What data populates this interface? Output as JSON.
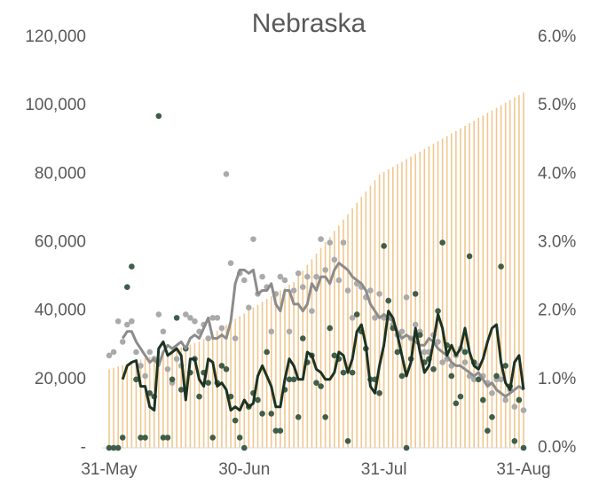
{
  "chart_data": {
    "type": "combo",
    "title": "Nebraska",
    "categories": [
      "31-May",
      null,
      null,
      null,
      null,
      null,
      null,
      null,
      null,
      null,
      null,
      null,
      null,
      null,
      null,
      null,
      null,
      null,
      null,
      null,
      null,
      null,
      null,
      null,
      null,
      null,
      null,
      null,
      null,
      null,
      "30-Jun",
      null,
      null,
      null,
      null,
      null,
      null,
      null,
      null,
      null,
      null,
      null,
      null,
      null,
      null,
      null,
      null,
      null,
      null,
      null,
      null,
      null,
      null,
      null,
      null,
      null,
      null,
      null,
      null,
      null,
      null,
      "31-Jul",
      null,
      null,
      null,
      null,
      null,
      null,
      null,
      null,
      null,
      null,
      null,
      null,
      null,
      null,
      null,
      null,
      null,
      null,
      null,
      null,
      null,
      null,
      null,
      null,
      null,
      null,
      null,
      null,
      null,
      null,
      "31-Aug"
    ],
    "ylim": [
      0,
      120000
    ],
    "yticks": [
      {
        "value": 0,
        "label": "-"
      },
      {
        "value": 20000,
        "label": "20,000"
      },
      {
        "value": 40000,
        "label": "40,000"
      },
      {
        "value": 60000,
        "label": "60,000"
      },
      {
        "value": 80000,
        "label": "80,000"
      },
      {
        "value": 100000,
        "label": "100,000"
      },
      {
        "value": 120000,
        "label": "120,000"
      }
    ],
    "y2lim": [
      0,
      6
    ],
    "y2ticks": [
      {
        "value": 0,
        "label": "0.0%"
      },
      {
        "value": 1,
        "label": "1.0%"
      },
      {
        "value": 2,
        "label": "2.0%"
      },
      {
        "value": 3,
        "label": "3.0%"
      },
      {
        "value": 4,
        "label": "4.0%"
      },
      {
        "value": 5,
        "label": "5.0%"
      },
      {
        "value": 6,
        "label": "6.0%"
      }
    ],
    "series": [
      {
        "type": "bar",
        "color": "#f0c890",
        "values": [
          23000,
          23400,
          23800,
          24200,
          24600,
          25000,
          25400,
          25800,
          26200,
          26600,
          27000,
          27400,
          27800,
          28200,
          28600,
          29000,
          29400,
          29800,
          30200,
          30600,
          31000,
          31800,
          32700,
          33500,
          34300,
          35200,
          36000,
          36800,
          37700,
          38500,
          39300,
          40200,
          41000,
          41800,
          42700,
          43500,
          44300,
          45200,
          46000,
          46800,
          47700,
          48500,
          50200,
          51800,
          53500,
          55100,
          56800,
          58400,
          60100,
          61700,
          63400,
          65000,
          66700,
          68300,
          70000,
          71600,
          73300,
          74900,
          76600,
          78200,
          79900,
          80600,
          81400,
          82100,
          82900,
          83600,
          84400,
          85100,
          85900,
          86600,
          87400,
          88100,
          88900,
          89600,
          90400,
          91100,
          91900,
          92600,
          93400,
          94100,
          94900,
          95600,
          96400,
          97100,
          97900,
          98600,
          99400,
          100100,
          100900,
          101600,
          102400,
          103100,
          103900
        ]
      },
      {
        "type": "scatter",
        "axis": "y2",
        "color": "#aaaaaa",
        "values": [
          1.35,
          1.4,
          1.85,
          1.55,
          1.8,
          1.85,
          1.4,
          1.2,
          1.05,
          1.4,
          1.3,
          1.95,
          1.7,
          1.15,
          0.95,
          1.3,
          1.2,
          1.95,
          1.9,
          1.85,
          1.7,
          1.8,
          1.6,
          1.9,
          1.9,
          1.75,
          4.0,
          2.7,
          1.6,
          2.55,
          2.45,
          2.05,
          3.05,
          2.25,
          2.5,
          2.35,
          1.7,
          2.25,
          2.5,
          2.45,
          1.7,
          2.3,
          2.55,
          2.35,
          2.5,
          2.0,
          2.5,
          3.05,
          2.6,
          3.0,
          2.75,
          2.45,
          3.0,
          2.3,
          1.9,
          2.4,
          2.35,
          2.2,
          2.3,
          1.9,
          2.25,
          1.9,
          1.9,
          1.8,
          1.65,
          1.7,
          2.2,
          1.6,
          1.8,
          1.7,
          1.4,
          1.4,
          1.65,
          1.55,
          1.25,
          1.3,
          1.2,
          1.35,
          1.45,
          1.25,
          1.05,
          1.0,
          1.2,
          1.05,
          0.95,
          0.8,
          1.0,
          1.0,
          0.7,
          0.85,
          0.6,
          0.7,
          0.55
        ]
      },
      {
        "type": "scatter",
        "color": "#3f5e4a",
        "values": [
          0,
          0,
          0,
          3000,
          47000,
          53000,
          20000,
          3000,
          3000,
          16000,
          15000,
          97000,
          3000,
          3000,
          20000,
          38000,
          17000,
          29000,
          22000,
          26000,
          15000,
          22000,
          19000,
          3000,
          19000,
          24000,
          23000,
          15000,
          8000,
          3000,
          0,
          12000,
          16000,
          14000,
          10000,
          28000,
          10000,
          5000,
          5000,
          17000,
          20000,
          20000,
          9000,
          32000,
          25000,
          27000,
          19000,
          18000,
          9000,
          35000,
          27000,
          26000,
          22000,
          2000,
          22000,
          39000,
          34000,
          29000,
          20000,
          20000,
          16000,
          59000,
          43000,
          35000,
          28000,
          21000,
          0,
          26000,
          45000,
          33000,
          25000,
          26000,
          23000,
          40000,
          60000,
          30000,
          21000,
          13000,
          15000,
          28000,
          56000,
          25000,
          20000,
          14000,
          5000,
          9000,
          21000,
          53000,
          24000,
          18000,
          2000,
          14000,
          0
        ]
      },
      {
        "type": "line",
        "axis": "y2",
        "color": "#8c8c8c",
        "values": [
          null,
          null,
          null,
          1.6,
          1.7,
          1.7,
          1.55,
          1.45,
          1.35,
          1.25,
          1.3,
          1.2,
          1.4,
          1.5,
          1.45,
          1.5,
          1.55,
          1.45,
          1.6,
          1.65,
          1.6,
          1.75,
          1.9,
          1.6,
          1.6,
          1.65,
          1.6,
          1.85,
          2.4,
          2.6,
          2.6,
          2.55,
          2.6,
          2.25,
          2.3,
          2.3,
          2.4,
          2.1,
          2.0,
          2.3,
          2.3,
          2.1,
          2.1,
          2.0,
          2.1,
          2.4,
          2.3,
          2.5,
          2.5,
          2.4,
          2.6,
          2.7,
          2.65,
          2.6,
          2.5,
          2.45,
          2.4,
          2.3,
          2.1,
          2.0,
          1.9,
          1.95,
          1.9,
          1.85,
          1.7,
          1.6,
          1.65,
          1.6,
          1.55,
          1.5,
          1.5,
          1.6,
          1.55,
          1.45,
          1.4,
          1.35,
          1.25,
          1.2,
          1.2,
          1.15,
          1.1,
          1.05,
          1.1,
          1.0,
          0.9,
          0.95,
          0.85,
          0.8,
          0.75,
          0.8,
          0.85,
          0.9,
          0.85
        ]
      },
      {
        "type": "line",
        "color": "#1c3322",
        "values": [
          null,
          null,
          null,
          20000,
          24000,
          25000,
          25500,
          18000,
          18000,
          12000,
          11000,
          29000,
          31000,
          27000,
          28000,
          29000,
          27000,
          14000,
          26000,
          26000,
          20000,
          18000,
          26000,
          25000,
          18000,
          19000,
          17000,
          11000,
          12000,
          11000,
          14000,
          12000,
          13000,
          21000,
          24000,
          21000,
          18000,
          12000,
          12000,
          20000,
          26000,
          24000,
          20000,
          20000,
          28000,
          27000,
          23000,
          22000,
          20000,
          20000,
          22000,
          28000,
          27000,
          22000,
          26000,
          34000,
          36000,
          30000,
          18000,
          16000,
          24000,
          30000,
          40000,
          38000,
          33000,
          27000,
          21000,
          25000,
          35000,
          28000,
          22000,
          24000,
          31000,
          39000,
          35000,
          27000,
          30000,
          27000,
          29000,
          35000,
          28000,
          24000,
          23000,
          26000,
          31000,
          35000,
          36000,
          25000,
          19000,
          17000,
          25000,
          27000,
          17000
        ]
      }
    ]
  }
}
